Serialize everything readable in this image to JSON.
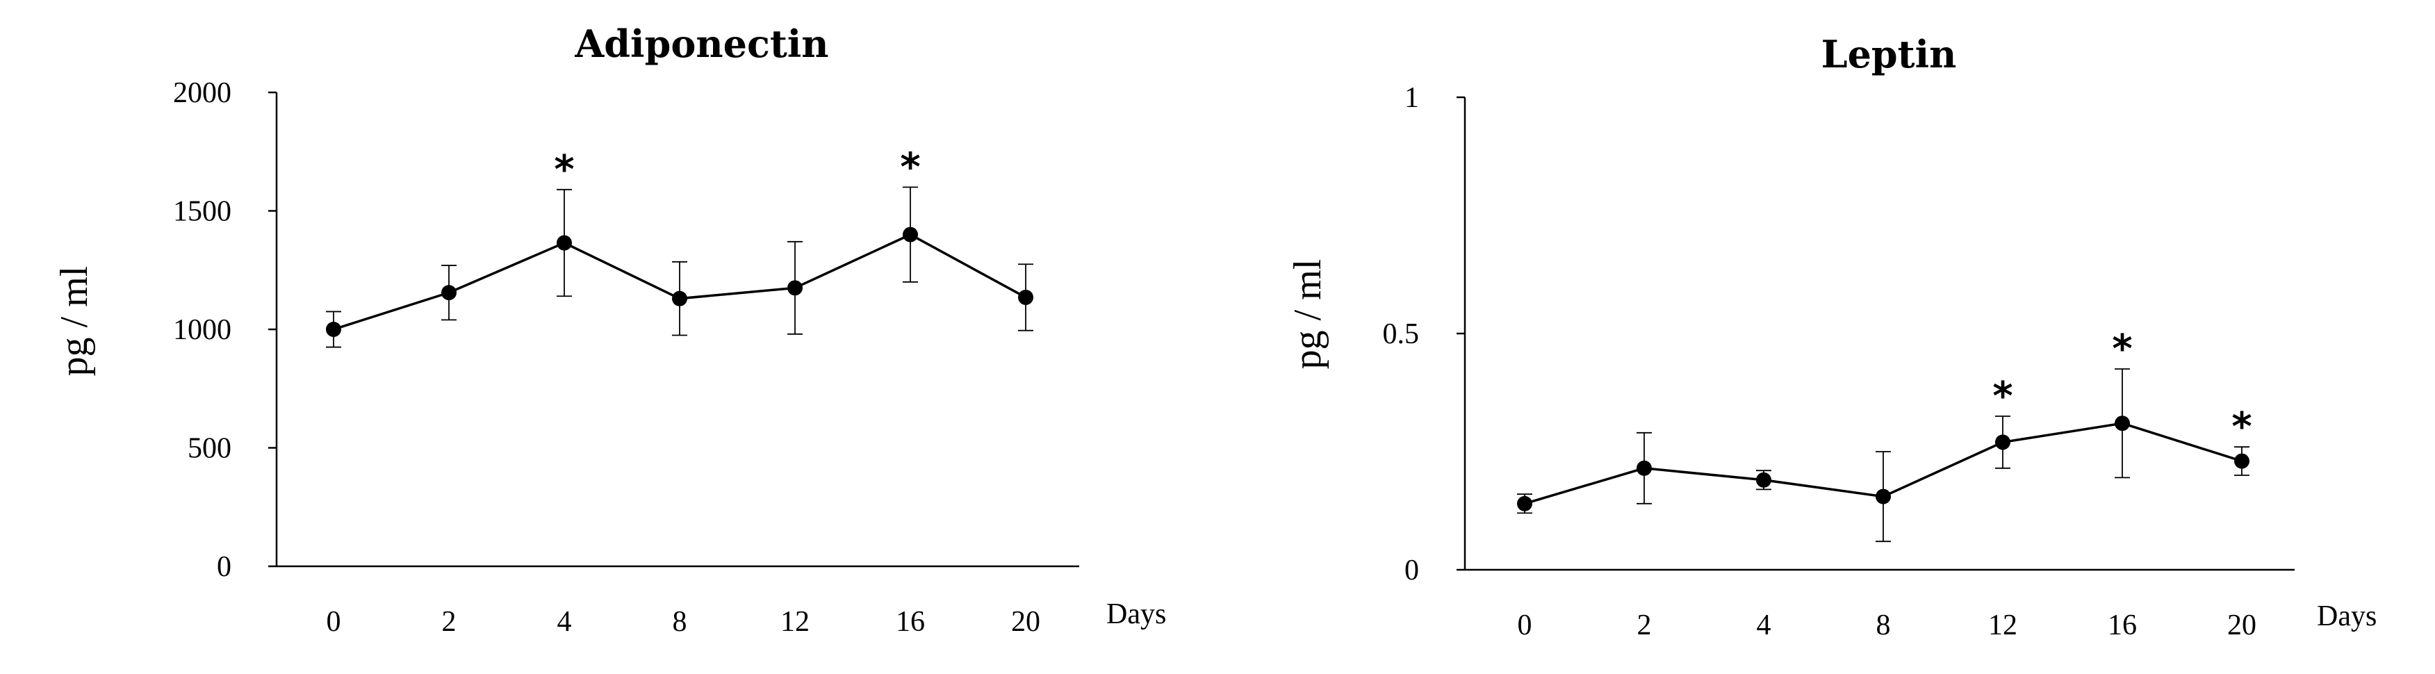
{
  "chart_data": [
    {
      "type": "line",
      "title": "Adiponectin",
      "ylabel": "pg / ml",
      "xlabel": "Days",
      "categories": [
        "0",
        "2",
        "4",
        "8",
        "12",
        "16",
        "20"
      ],
      "values": [
        1000,
        1155,
        1365,
        1130,
        1175,
        1400,
        1135
      ],
      "errors": [
        75,
        115,
        225,
        155,
        195,
        200,
        140
      ],
      "significant": [
        false,
        false,
        true,
        false,
        false,
        true,
        false
      ],
      "significance_marker": "*",
      "ylim": [
        0,
        2000
      ],
      "yticks": [
        "0",
        "500",
        "1000",
        "1500",
        "2000"
      ],
      "ytick_values": [
        0,
        500,
        1000,
        1500,
        2000
      ],
      "grid": false,
      "colors": {
        "line": "#000000",
        "marker": "#000000"
      }
    },
    {
      "type": "line",
      "title": "Leptin",
      "ylabel": "pg / ml",
      "xlabel": "Days",
      "categories": [
        "0",
        "2",
        "4",
        "8",
        "12",
        "16",
        "20"
      ],
      "values": [
        0.14,
        0.215,
        0.19,
        0.155,
        0.27,
        0.31,
        0.23
      ],
      "errors": [
        0.02,
        0.075,
        0.02,
        0.095,
        0.055,
        0.115,
        0.03
      ],
      "significant": [
        false,
        false,
        false,
        false,
        true,
        true,
        true
      ],
      "significance_marker": "*",
      "ylim": [
        0,
        1
      ],
      "yticks": [
        "0",
        "0.5",
        "1"
      ],
      "ytick_values": [
        0,
        0.5,
        1
      ],
      "grid": false,
      "colors": {
        "line": "#000000",
        "marker": "#000000"
      }
    }
  ]
}
